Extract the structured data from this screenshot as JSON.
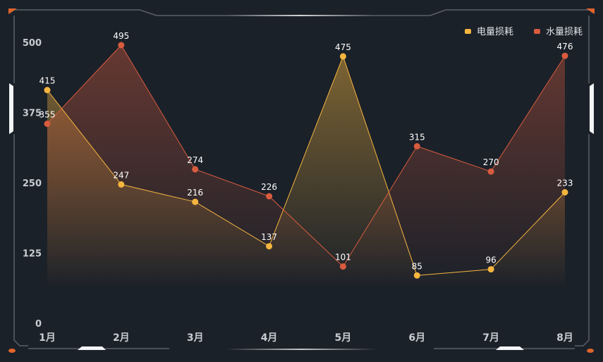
{
  "colors": {
    "background": "#1b2129",
    "frame": "#5b6068",
    "corner_accent": "#e0642b",
    "axis_label": "#c8ccd2",
    "data_label": "#ffffff",
    "series_electric": "#f5b53f",
    "series_water": "#d85b3e"
  },
  "chart_data": {
    "type": "area",
    "categories": [
      "1月",
      "2月",
      "3月",
      "4月",
      "5月",
      "6月",
      "7月",
      "8月"
    ],
    "series": [
      {
        "name": "电量损耗",
        "values": [
          415,
          247,
          216,
          137,
          475,
          85,
          96,
          233
        ]
      },
      {
        "name": "水量损耗",
        "values": [
          355,
          495,
          274,
          226,
          101,
          315,
          270,
          476
        ]
      }
    ],
    "yticks": [
      0,
      125,
      250,
      375,
      500
    ],
    "ylim": [
      0,
      500
    ],
    "title": "",
    "xlabel": "",
    "ylabel": "",
    "legend_position": "top-right",
    "grid": false
  }
}
